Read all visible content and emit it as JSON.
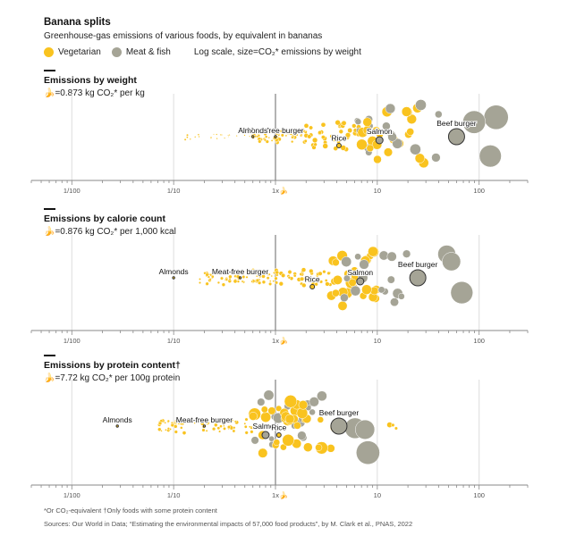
{
  "header": {
    "title": "Banana splits",
    "subtitle": "Greenhouse-gas emissions of various foods, by equivalent in bananas",
    "legend": [
      {
        "label": "Vegetarian",
        "color": "#f9c31f"
      },
      {
        "label": "Meat & fish",
        "color": "#a5a496"
      }
    ],
    "scale_note": "Log scale, size=CO₂* emissions by weight"
  },
  "colors": {
    "veg": "#f9c31f",
    "meat": "#a5a496",
    "axis": "#888888",
    "grid": "#dddddd",
    "highlight_stroke": "#333333"
  },
  "chart_data": [
    {
      "type": "scatter",
      "subtype": "beeswarm",
      "title": "Emissions by weight",
      "unit_note": "=0.873 kg CO₂* per kg",
      "xscale": "log",
      "xlim": [
        0.004,
        300
      ],
      "xticks": [
        {
          "v": 0.01,
          "label": "1/100"
        },
        {
          "v": 0.1,
          "label": "1/10"
        },
        {
          "v": 1,
          "label": "1x"
        },
        {
          "v": 10,
          "label": "10"
        },
        {
          "v": 100,
          "label": "100"
        }
      ],
      "labels": [
        {
          "name": "Meat-free burger",
          "x": 1.0,
          "category": "veg",
          "size": 1.2
        },
        {
          "name": "Almonds",
          "x": 0.6,
          "category": "veg",
          "size": 1.2
        },
        {
          "name": "Rice",
          "x": 4.2,
          "category": "veg",
          "size": 2.5
        },
        {
          "name": "Salmon",
          "x": 10.5,
          "category": "meat",
          "size": 4
        },
        {
          "name": "Beef burger",
          "x": 60,
          "category": "meat",
          "size": 9
        }
      ],
      "clusters": [
        {
          "category": "veg",
          "from": 0.12,
          "to": 0.6,
          "count": 22,
          "size": [
            0.6,
            1.2
          ],
          "spread": 0.3
        },
        {
          "category": "veg",
          "from": 0.6,
          "to": 2.0,
          "count": 60,
          "size": [
            1.0,
            2.2
          ],
          "spread": 0.5
        },
        {
          "category": "veg",
          "from": 2.0,
          "to": 7.0,
          "count": 40,
          "size": [
            2.0,
            3.0
          ],
          "spread": 0.8
        },
        {
          "category": "meat",
          "from": 6,
          "to": 12,
          "count": 10,
          "size": [
            3,
            4.5
          ],
          "spread": 0.9
        },
        {
          "category": "veg",
          "from": 7,
          "to": 30,
          "count": 22,
          "size": [
            4,
            6
          ],
          "spread": 1
        },
        {
          "category": "meat",
          "from": 12,
          "to": 40,
          "count": 9,
          "size": [
            4,
            7
          ],
          "spread": 1
        },
        {
          "category": "meat",
          "from": 80,
          "to": 150,
          "count": 3,
          "size": [
            10,
            14
          ],
          "spread": 1
        }
      ]
    },
    {
      "type": "scatter",
      "subtype": "beeswarm",
      "title": "Emissions by calorie count",
      "unit_note": "=0.876 kg CO₂* per 1,000 kcal",
      "xscale": "log",
      "xlim": [
        0.004,
        300
      ],
      "xticks": [
        {
          "v": 0.01,
          "label": "1/100"
        },
        {
          "v": 0.1,
          "label": "1/10"
        },
        {
          "v": 1,
          "label": "1x"
        },
        {
          "v": 10,
          "label": "10"
        },
        {
          "v": 100,
          "label": "100"
        }
      ],
      "labels": [
        {
          "name": "Almonds",
          "x": 0.1,
          "category": "veg",
          "size": 1.2
        },
        {
          "name": "Meat-free burger",
          "x": 0.45,
          "category": "veg",
          "size": 1.2
        },
        {
          "name": "Rice",
          "x": 2.3,
          "category": "veg",
          "size": 2.5
        },
        {
          "name": "Salmon",
          "x": 6.8,
          "category": "meat",
          "size": 4
        },
        {
          "name": "Beef burger",
          "x": 25,
          "category": "meat",
          "size": 9
        }
      ],
      "clusters": [
        {
          "category": "veg",
          "from": 0.18,
          "to": 1.0,
          "count": 70,
          "size": [
            1.0,
            2.2
          ],
          "spread": 0.5
        },
        {
          "category": "veg",
          "from": 1.0,
          "to": 3.5,
          "count": 40,
          "size": [
            1.5,
            2.5
          ],
          "spread": 0.5
        },
        {
          "category": "veg",
          "from": 3.5,
          "to": 10,
          "count": 28,
          "size": [
            4,
            6
          ],
          "spread": 1
        },
        {
          "category": "meat",
          "from": 4,
          "to": 20,
          "count": 16,
          "size": [
            3,
            6
          ],
          "spread": 1
        },
        {
          "category": "meat",
          "from": 30,
          "to": 80,
          "count": 3,
          "size": [
            10,
            14
          ],
          "spread": 1
        }
      ]
    },
    {
      "type": "scatter",
      "subtype": "beeswarm",
      "title": "Emissions by protein content†",
      "unit_note": "=7.72 kg CO₂* per 100g protein",
      "xscale": "log",
      "xlim": [
        0.004,
        300
      ],
      "xticks": [
        {
          "v": 0.01,
          "label": "1/100"
        },
        {
          "v": 0.1,
          "label": "1/10"
        },
        {
          "v": 1,
          "label": "1x"
        },
        {
          "v": 10,
          "label": "10"
        },
        {
          "v": 100,
          "label": "100"
        }
      ],
      "labels": [
        {
          "name": "Almonds",
          "x": 0.028,
          "category": "veg",
          "size": 1.2
        },
        {
          "name": "Meat-free burger",
          "x": 0.2,
          "category": "veg",
          "size": 1.2
        },
        {
          "name": "Salmon",
          "x": 0.8,
          "category": "meat",
          "size": 4
        },
        {
          "name": "Rice",
          "x": 1.08,
          "category": "veg",
          "size": 2.5
        },
        {
          "name": "Beef burger",
          "x": 4.2,
          "category": "meat",
          "size": 9
        }
      ],
      "clusters": [
        {
          "category": "veg",
          "from": 0.07,
          "to": 0.6,
          "count": 60,
          "size": [
            1.0,
            2.2
          ],
          "spread": 0.5
        },
        {
          "category": "meat",
          "from": 0.6,
          "to": 3,
          "count": 18,
          "size": [
            3,
            6
          ],
          "spread": 1
        },
        {
          "category": "veg",
          "from": 0.6,
          "to": 4,
          "count": 35,
          "size": [
            3,
            7
          ],
          "spread": 1
        },
        {
          "category": "meat",
          "from": 5,
          "to": 10,
          "count": 3,
          "size": [
            10,
            14
          ],
          "spread": 1
        },
        {
          "category": "veg",
          "from": 12,
          "to": 35,
          "count": 3,
          "size": [
            1.5,
            4
          ],
          "spread": 0.2
        }
      ]
    }
  ],
  "footer": {
    "notes": "*Or CO₂-equivalent   †Only foods with some protein content",
    "sources": "Sources: Our World in Data; “Estimating the environmental impacts of 57,000 food products”, by M. Clark et al., PNAS, 2022"
  }
}
